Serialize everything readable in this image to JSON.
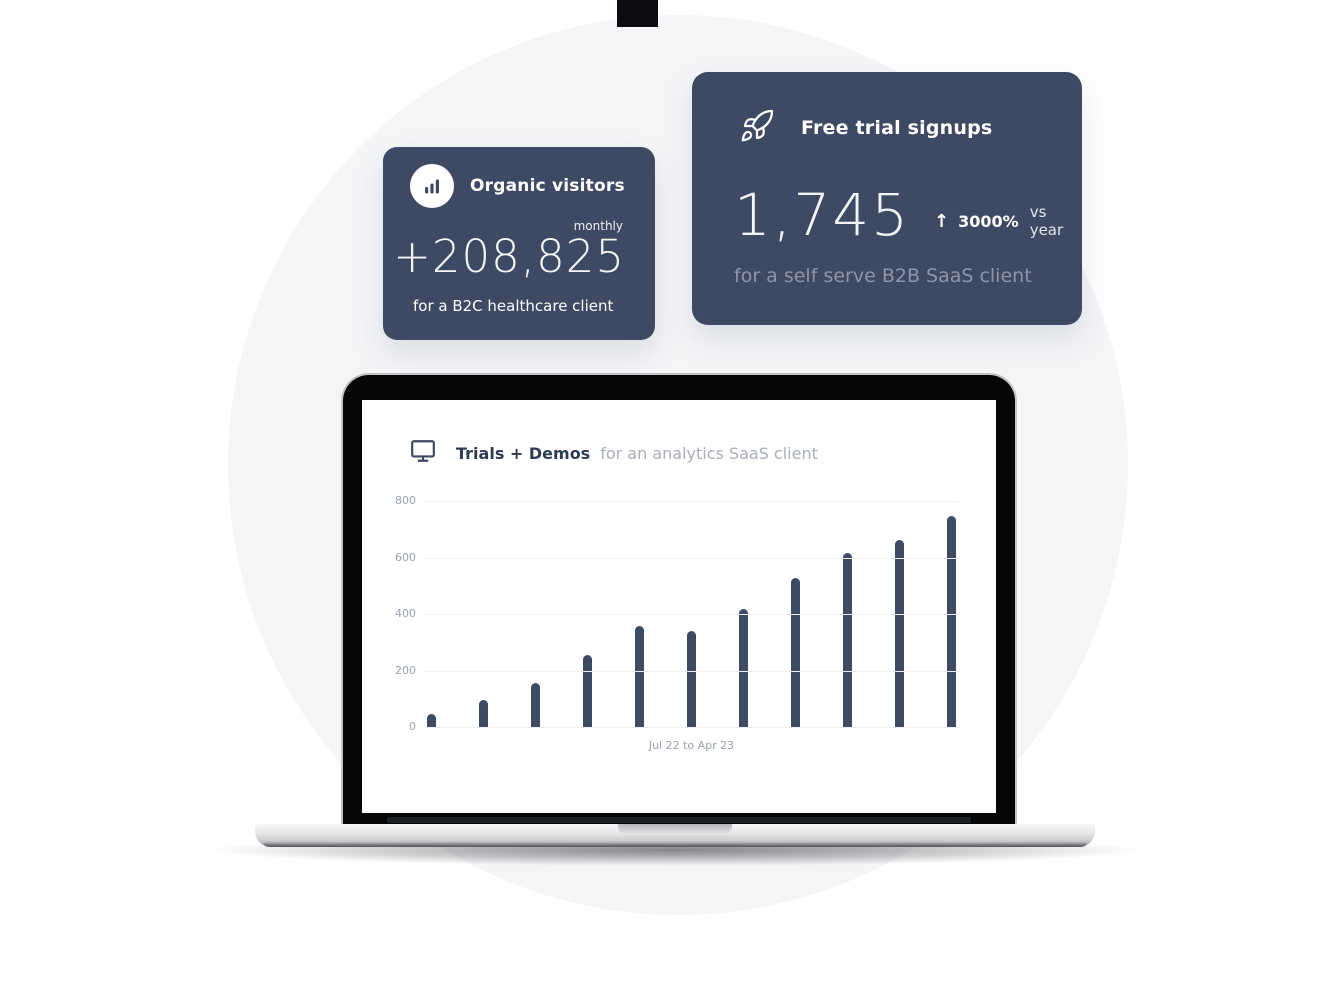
{
  "page": {
    "background_color": "#ffffff",
    "circle_color": "#f4f5f7"
  },
  "colors": {
    "card_background": "#3e4a64",
    "card_title_text": "#ffffff",
    "card_value_text": "#f2f4f8",
    "card_muted_text": "#8d95a8",
    "chart_title_text": "#2f3b52",
    "chart_subtitle_text": "#a9aeb9",
    "axis_text": "#9aa1ad",
    "gridline": "#eef0f3",
    "bar": "#3d4a63"
  },
  "organic_card": {
    "icon": "bar-chart-icon",
    "title": "Organic visitors",
    "period": "monthly",
    "value": "+208,825",
    "caption": "for a B2C healthcare client"
  },
  "trial_card": {
    "icon": "rocket-icon",
    "title": "Free trial signups",
    "value": "1,745",
    "delta_arrow": "↑",
    "delta_value": "3000%",
    "delta_caption": "vs year",
    "caption": "for a self serve B2B SaaS client"
  },
  "chart_header": {
    "icon": "monitor-icon",
    "title": "Trials + Demos",
    "subtitle": "for an analytics SaaS client"
  },
  "chart_data": {
    "type": "bar",
    "title": "Trials + Demos",
    "subtitle": "for an analytics SaaS client",
    "xlabel": "Jul 22 to Apr 23",
    "ylabel": "",
    "ylim": [
      0,
      800
    ],
    "yticks": [
      0,
      200,
      400,
      600,
      800
    ],
    "grid": "horizontal",
    "legend": "none",
    "bar_color": "#3d4a63",
    "values": [
      50,
      100,
      160,
      260,
      360,
      345,
      420,
      530,
      620,
      665,
      750
    ]
  }
}
